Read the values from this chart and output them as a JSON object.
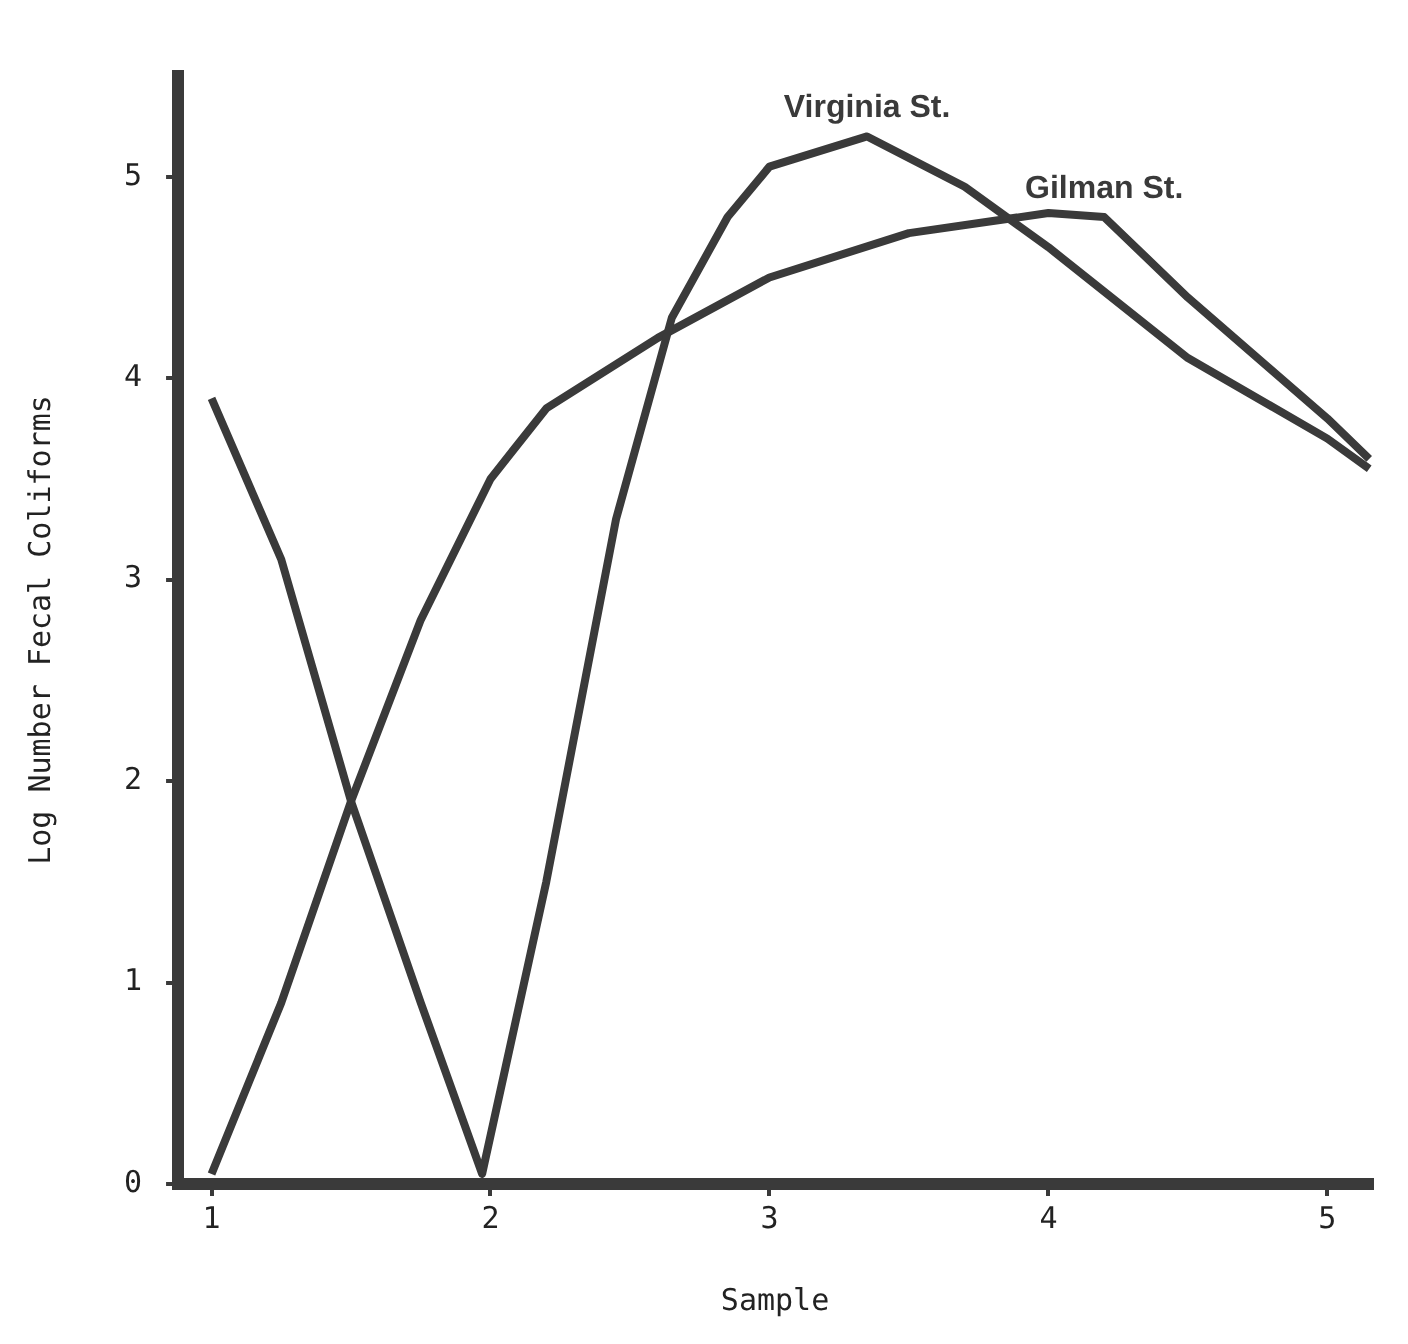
{
  "chart_data": {
    "type": "line",
    "xlabel": "Sample",
    "ylabel": "Log Number Fecal Coliforms",
    "xlim": [
      0.88,
      5.16
    ],
    "xticks": [
      1,
      2,
      3,
      4,
      5
    ],
    "ylim": [
      0,
      5.5
    ],
    "yticks": [
      0,
      1,
      2,
      3,
      4,
      5
    ],
    "grid": false,
    "legend": false,
    "marker": "none",
    "line_style": "solid",
    "series": [
      {
        "name": "Virginia St.",
        "color": "#3a3a3a",
        "x": [
          1,
          1.25,
          1.5,
          1.75,
          1.97,
          2.2,
          2.45,
          2.65,
          2.85,
          3.0,
          3.35,
          3.7,
          4.0,
          4.5,
          5.0,
          5.15
        ],
        "values": [
          3.9,
          3.1,
          1.9,
          0.9,
          0.05,
          1.5,
          3.3,
          4.3,
          4.8,
          5.05,
          5.2,
          4.95,
          4.65,
          4.1,
          3.7,
          3.55
        ]
      },
      {
        "name": "Gilman St.",
        "color": "#3a3a3a",
        "x": [
          1,
          1.25,
          1.5,
          1.75,
          2.0,
          2.2,
          2.6,
          3.0,
          3.5,
          4.0,
          4.2,
          4.5,
          5.0,
          5.15
        ],
        "values": [
          0.05,
          0.9,
          1.9,
          2.8,
          3.5,
          3.85,
          4.2,
          4.5,
          4.72,
          4.82,
          4.8,
          4.4,
          3.8,
          3.6
        ]
      }
    ]
  }
}
